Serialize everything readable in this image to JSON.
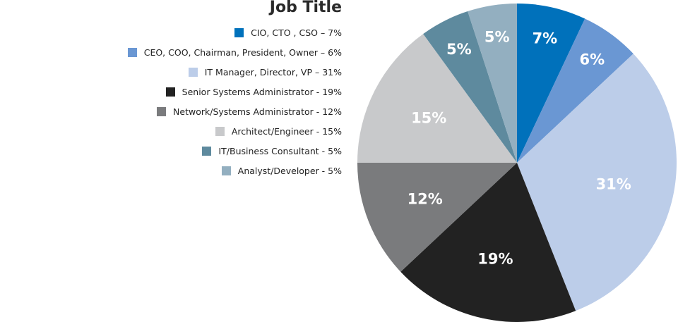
{
  "chart_data": {
    "type": "pie",
    "title": "Job Title",
    "legend_position": "left",
    "slices": [
      {
        "legend": "CIO, CTO , CSO – 7%",
        "label": "7%",
        "value": 7,
        "color": "#0071bb"
      },
      {
        "legend": "CEO, COO, Chairman, President, Owner – 6%",
        "label": "6%",
        "value": 6,
        "color": "#6a97d3"
      },
      {
        "legend": "IT Manager, Director, VP – 31%",
        "label": "31%",
        "value": 31,
        "color": "#bccde9"
      },
      {
        "legend": "Senior Systems Administrator - 19%",
        "label": "19%",
        "value": 19,
        "color": "#222222"
      },
      {
        "legend": "Network/Systems Administrator - 12%",
        "label": "12%",
        "value": 12,
        "color": "#7a7b7d"
      },
      {
        "legend": "Architect/Engineer - 15%",
        "label": "15%",
        "value": 15,
        "color": "#c8c9cb"
      },
      {
        "legend": "IT/Business Consultant - 5%",
        "label": "5%",
        "value": 5,
        "color": "#5e8a9e"
      },
      {
        "legend": "Analyst/Developer - 5%",
        "label": "5%",
        "value": 5,
        "color": "#93afc0"
      }
    ]
  }
}
